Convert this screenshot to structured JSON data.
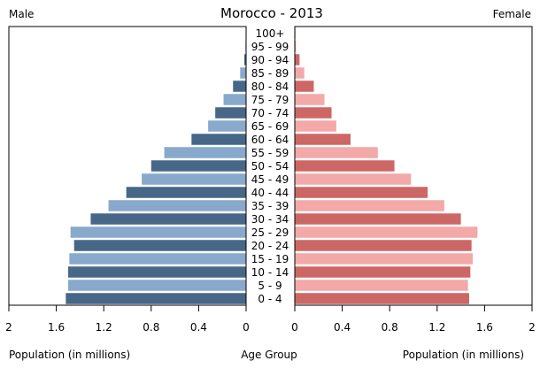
{
  "chart_data": {
    "type": "bar",
    "title": "Morocco - 2013",
    "left_label": "Male",
    "right_label": "Female",
    "xlabel_left": "Population (in millions)",
    "xlabel_right": "Population (in millions)",
    "center_label": "Age Group",
    "xlim": [
      0,
      2
    ],
    "tick_values": [
      0,
      0.4,
      0.8,
      1.2,
      1.6,
      2
    ],
    "tick_labels": [
      "0",
      "0.4",
      "0.8",
      "1.2",
      "1.6",
      "2"
    ],
    "categories": [
      "0 - 4",
      "5 - 9",
      "10 - 14",
      "15 - 19",
      "20 - 24",
      "25 - 29",
      "30 - 34",
      "35 - 39",
      "40 - 44",
      "45 - 49",
      "50 - 54",
      "55 - 59",
      "60 - 64",
      "65 - 69",
      "70 - 74",
      "75 - 79",
      "80 - 84",
      "85 - 89",
      "90 - 94",
      "95 - 99",
      "100+"
    ],
    "series": [
      {
        "side": "left",
        "colors": [
          "#476788",
          "#89a9cc"
        ],
        "values": [
          1.52,
          1.5,
          1.5,
          1.49,
          1.45,
          1.48,
          1.31,
          1.16,
          1.01,
          0.88,
          0.8,
          0.69,
          0.46,
          0.32,
          0.26,
          0.19,
          0.11,
          0.05,
          0.015,
          0.005,
          0.002
        ]
      },
      {
        "side": "right",
        "colors": [
          "#cd6765",
          "#f2a9a8"
        ],
        "values": [
          1.47,
          1.46,
          1.48,
          1.5,
          1.49,
          1.54,
          1.4,
          1.26,
          1.12,
          0.98,
          0.84,
          0.7,
          0.47,
          0.35,
          0.31,
          0.25,
          0.16,
          0.08,
          0.04,
          0.01,
          0.005
        ]
      }
    ]
  }
}
